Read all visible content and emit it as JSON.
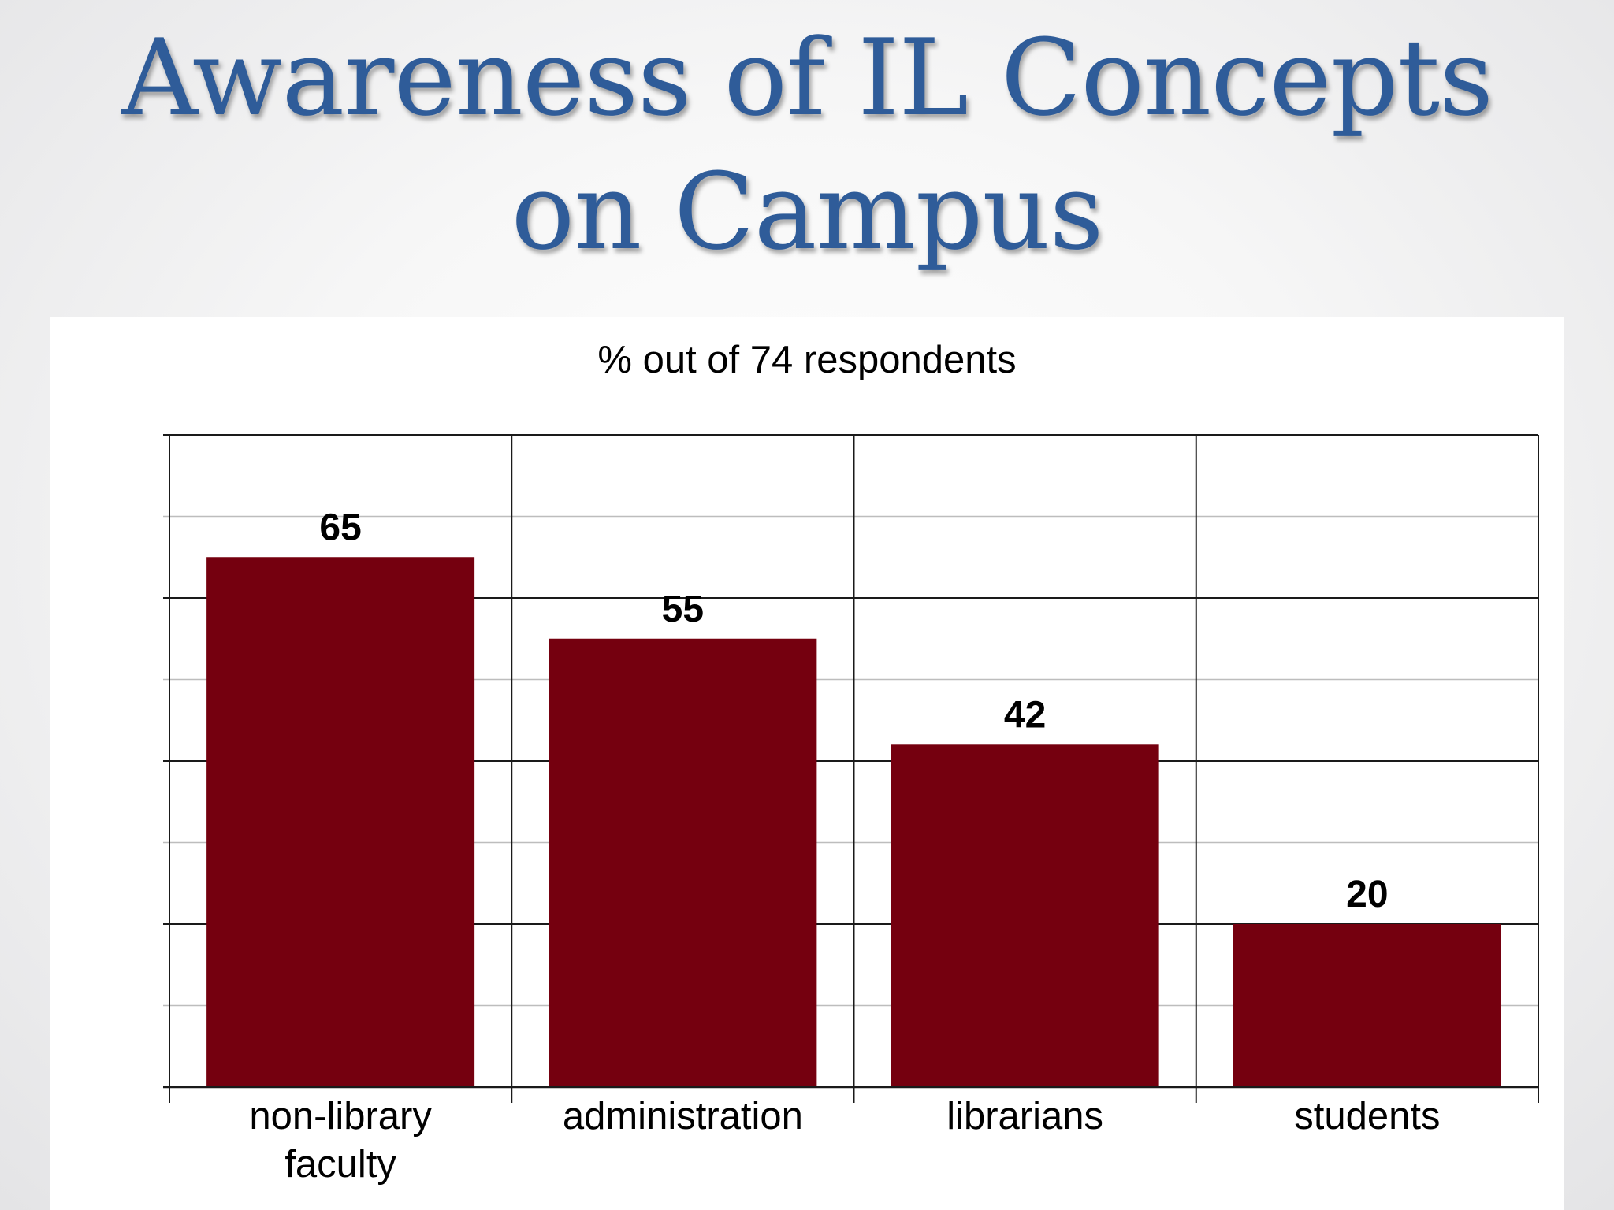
{
  "slide": {
    "title_line1": "Awareness of IL Concepts",
    "title_line2": "on Campus",
    "title_color": "#2f5c99"
  },
  "chart_data": {
    "type": "bar",
    "title": "% out of 74 respondents",
    "categories": [
      "non-library faculty",
      "administration",
      "librarians",
      "students"
    ],
    "category_label_lines": [
      [
        "non-library",
        "faculty"
      ],
      [
        "administration"
      ],
      [
        "librarians"
      ],
      [
        "students"
      ]
    ],
    "values": [
      65,
      55,
      42,
      20
    ],
    "data_labels": [
      "65",
      "55",
      "42",
      "20"
    ],
    "ylim": [
      0,
      80
    ],
    "y_gridline_step": 10,
    "xlabel": "",
    "ylabel": "",
    "grid": true,
    "legend": "none",
    "bar_color": "#75000f"
  }
}
